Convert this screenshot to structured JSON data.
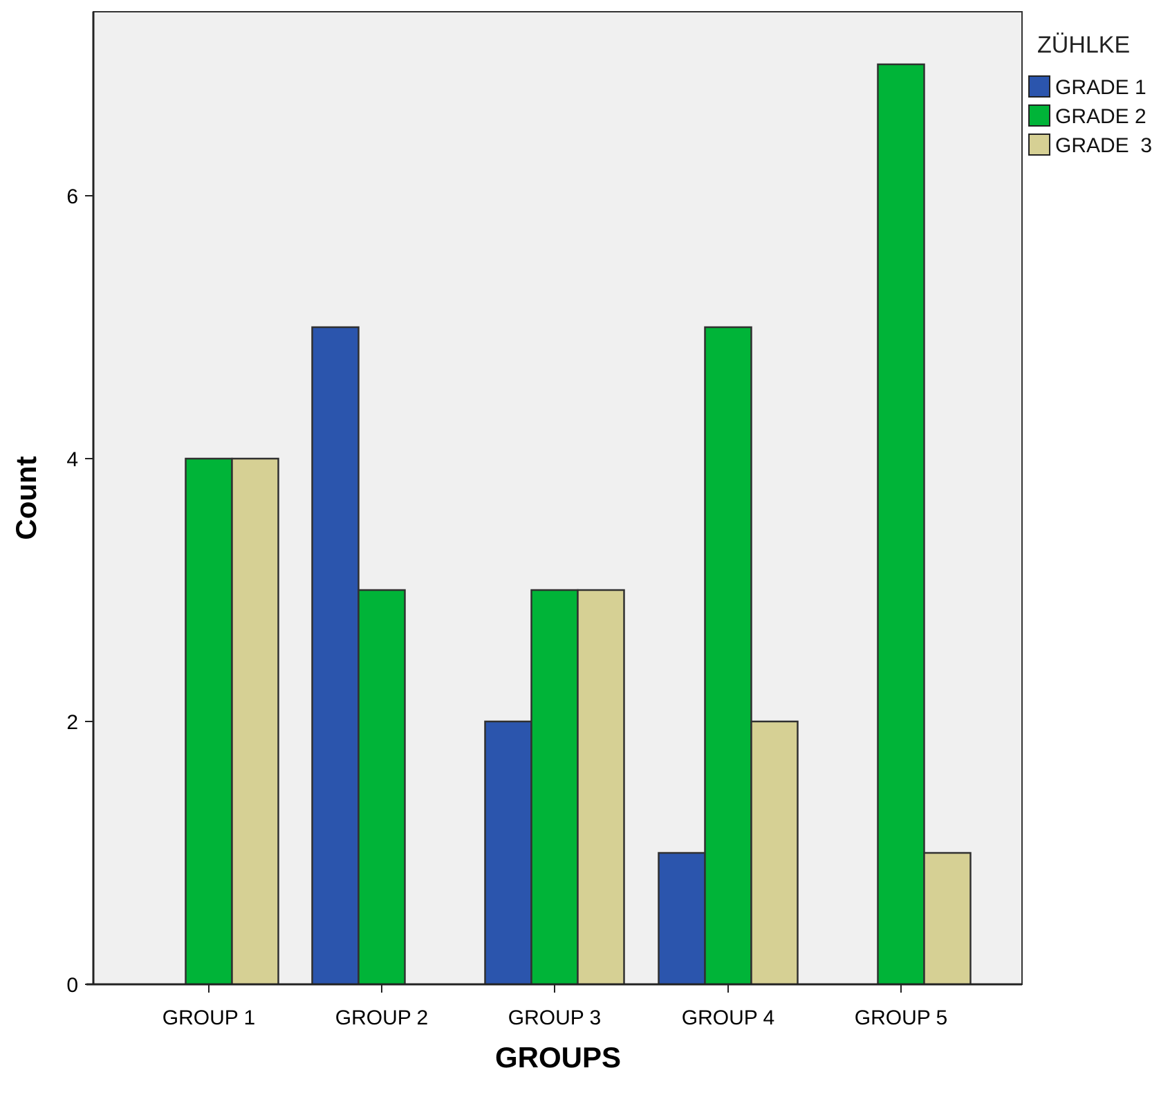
{
  "chart_data": {
    "type": "bar",
    "xlabel": "GROUPS",
    "ylabel": "Count",
    "categories": [
      "GROUP 1",
      "GROUP 2",
      "GROUP 3",
      "GROUP 4",
      "GROUP 5"
    ],
    "series": [
      {
        "name": "GRADE 1",
        "color": "#2b55ad",
        "values": [
          null,
          5,
          2,
          1,
          null
        ]
      },
      {
        "name": "GRADE 2",
        "color": "#00b438",
        "values": [
          4,
          3,
          3,
          5,
          7
        ]
      },
      {
        "name": "GRADE  3",
        "color": "#d6d094",
        "values": [
          4,
          null,
          3,
          2,
          1
        ]
      }
    ],
    "ylim": [
      0,
      7.4
    ],
    "yticks": [
      0,
      2,
      4,
      6
    ],
    "grid": false,
    "legend": {
      "title": "ZÜHLKE",
      "position": "top-right"
    },
    "colors": {
      "plot_background": "#f0f0f0",
      "bar_outline": "#303030"
    }
  }
}
